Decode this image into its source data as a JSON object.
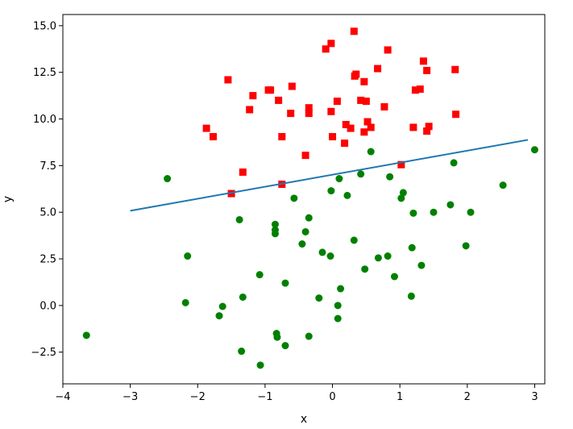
{
  "chart_data": {
    "type": "scatter",
    "title": "",
    "xlabel": "x",
    "ylabel": "y",
    "xlim": [
      -4,
      3.15
    ],
    "ylim": [
      -4.2,
      15.6
    ],
    "xticks": [
      -4,
      -3,
      -2,
      -1,
      0,
      1,
      2,
      3
    ],
    "xtick_labels": [
      "−4",
      "−3",
      "−2",
      "−1",
      "0",
      "1",
      "2",
      "3"
    ],
    "yticks": [
      -2.5,
      0.0,
      2.5,
      5.0,
      7.5,
      10.0,
      12.5,
      15.0
    ],
    "ytick_labels": [
      "−2.5",
      "0.0",
      "2.5",
      "5.0",
      "7.5",
      "10.0",
      "12.5",
      "15.0"
    ],
    "grid": false,
    "series": [
      {
        "marker": "square",
        "color": "#ff0000",
        "points": [
          [
            -1.87,
            9.5
          ],
          [
            -1.77,
            9.05
          ],
          [
            -1.55,
            12.1
          ],
          [
            -1.5,
            6.0
          ],
          [
            -1.33,
            7.15
          ],
          [
            -1.23,
            10.5
          ],
          [
            -1.18,
            11.25
          ],
          [
            -0.95,
            11.55
          ],
          [
            -0.92,
            11.55
          ],
          [
            -0.8,
            11.0
          ],
          [
            -0.75,
            9.05
          ],
          [
            -0.75,
            6.5
          ],
          [
            -0.62,
            10.3
          ],
          [
            -0.6,
            11.75
          ],
          [
            -0.4,
            8.05
          ],
          [
            -0.35,
            10.3
          ],
          [
            -0.35,
            10.6
          ],
          [
            -0.1,
            13.75
          ],
          [
            -0.02,
            14.05
          ],
          [
            -0.02,
            10.4
          ],
          [
            0.0,
            9.05
          ],
          [
            0.07,
            10.95
          ],
          [
            0.18,
            8.7
          ],
          [
            0.2,
            9.7
          ],
          [
            0.27,
            9.5
          ],
          [
            0.32,
            14.7
          ],
          [
            0.33,
            12.3
          ],
          [
            0.35,
            12.4
          ],
          [
            0.42,
            11.0
          ],
          [
            0.47,
            12.0
          ],
          [
            0.47,
            9.3
          ],
          [
            0.5,
            10.95
          ],
          [
            0.52,
            9.85
          ],
          [
            0.57,
            9.55
          ],
          [
            0.67,
            12.7
          ],
          [
            0.77,
            10.65
          ],
          [
            0.82,
            13.7
          ],
          [
            1.02,
            7.55
          ],
          [
            1.2,
            9.55
          ],
          [
            1.23,
            11.55
          ],
          [
            1.3,
            11.6
          ],
          [
            1.35,
            13.1
          ],
          [
            1.4,
            12.6
          ],
          [
            1.4,
            9.35
          ],
          [
            1.43,
            9.6
          ],
          [
            1.82,
            12.65
          ],
          [
            1.83,
            10.25
          ]
        ]
      },
      {
        "marker": "circle",
        "color": "#008000",
        "points": [
          [
            -3.65,
            -1.6
          ],
          [
            -2.45,
            6.8
          ],
          [
            -2.15,
            2.65
          ],
          [
            -2.18,
            0.15
          ],
          [
            -1.68,
            -0.55
          ],
          [
            -1.63,
            -0.05
          ],
          [
            -1.38,
            4.6
          ],
          [
            -1.35,
            -2.45
          ],
          [
            -1.33,
            0.45
          ],
          [
            -1.08,
            1.65
          ],
          [
            -1.07,
            -3.2
          ],
          [
            -0.85,
            4.35
          ],
          [
            -0.85,
            4.05
          ],
          [
            -0.85,
            3.85
          ],
          [
            -0.83,
            -1.5
          ],
          [
            -0.82,
            -1.7
          ],
          [
            -0.7,
            -2.15
          ],
          [
            -0.7,
            1.2
          ],
          [
            -0.57,
            5.75
          ],
          [
            -0.45,
            3.3
          ],
          [
            -0.4,
            3.95
          ],
          [
            -0.35,
            4.7
          ],
          [
            -0.35,
            -1.65
          ],
          [
            -0.2,
            0.4
          ],
          [
            -0.15,
            2.85
          ],
          [
            -0.03,
            2.65
          ],
          [
            -0.02,
            6.15
          ],
          [
            0.08,
            -0.7
          ],
          [
            0.08,
            0.0
          ],
          [
            0.1,
            6.8
          ],
          [
            0.12,
            0.9
          ],
          [
            0.22,
            5.9
          ],
          [
            0.32,
            3.5
          ],
          [
            0.42,
            7.05
          ],
          [
            0.48,
            1.95
          ],
          [
            0.57,
            8.25
          ],
          [
            0.68,
            2.55
          ],
          [
            0.82,
            2.65
          ],
          [
            0.85,
            6.9
          ],
          [
            0.92,
            1.55
          ],
          [
            1.02,
            5.75
          ],
          [
            1.05,
            6.05
          ],
          [
            1.17,
            0.5
          ],
          [
            1.18,
            3.1
          ],
          [
            1.2,
            4.95
          ],
          [
            1.32,
            2.15
          ],
          [
            1.5,
            5.0
          ],
          [
            1.75,
            5.4
          ],
          [
            1.8,
            7.65
          ],
          [
            1.98,
            3.2
          ],
          [
            2.05,
            5.0
          ],
          [
            2.53,
            6.45
          ],
          [
            3.0,
            8.35
          ]
        ]
      },
      {
        "marker": "line",
        "color": "#1f77b4",
        "points": [
          [
            -3.0,
            5.08
          ],
          [
            2.9,
            8.88
          ]
        ]
      }
    ]
  }
}
